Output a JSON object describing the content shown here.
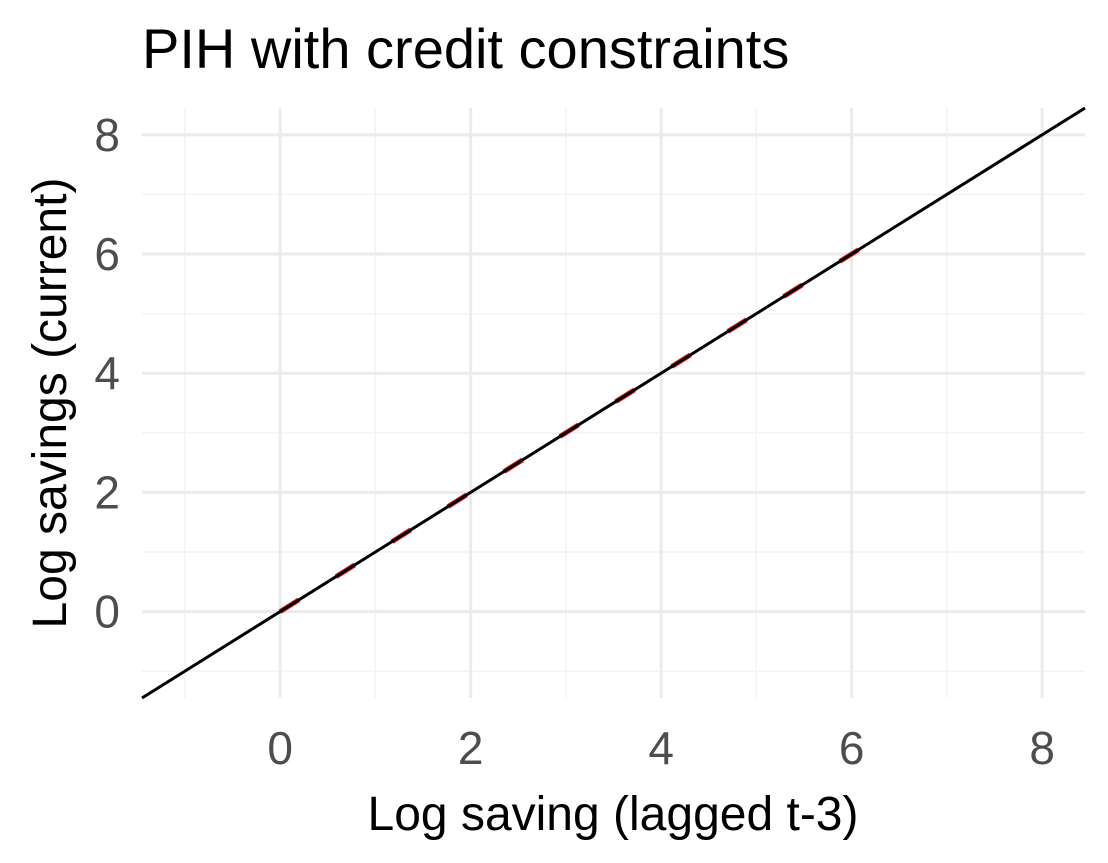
{
  "chart_data": {
    "type": "line",
    "title": "PIH with credit constraints",
    "xlabel": "Log saving (lagged t-3)",
    "ylabel": "Log savings (current)",
    "xlim": [
      -1.45,
      8.45
    ],
    "ylim": [
      -1.45,
      8.45
    ],
    "x_ticks": [
      0,
      2,
      4,
      6,
      8
    ],
    "y_ticks": [
      0,
      2,
      4,
      6,
      8
    ],
    "x_tick_labels": [
      "0",
      "2",
      "4",
      "6",
      "8"
    ],
    "y_tick_labels": [
      "0",
      "2",
      "4",
      "6",
      "8"
    ],
    "grid": true,
    "series": [
      {
        "style": "solid",
        "color": "#000000",
        "x": [
          -1.45,
          8.45
        ],
        "y": [
          -1.45,
          8.45
        ]
      },
      {
        "style": "dashed",
        "color": "#e41a1c",
        "x": [
          0,
          6.4
        ],
        "y": [
          0,
          6.4
        ]
      }
    ]
  }
}
